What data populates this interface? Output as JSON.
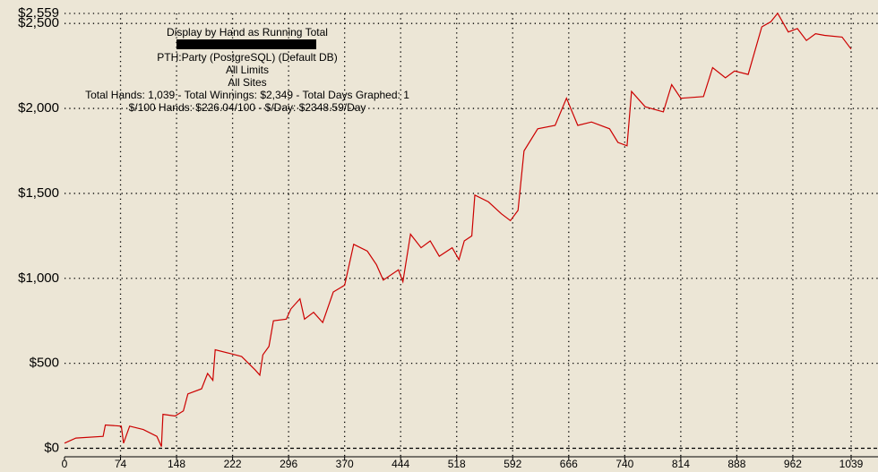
{
  "chart_data": {
    "type": "line",
    "title": "Display by Hand as Running Total",
    "subtitle_lines": [
      "PTH:Party (PostgreSQL) (Default DB)",
      "All Limits",
      "All Sites",
      "Total Hands: 1,039 - Total Winnings: $2,349 - Total Days Graphed: 1",
      "$/100 Hands: $226.04/100 - $/Day: $2348.59/Day"
    ],
    "color": "#cc0000",
    "x": [
      0,
      15,
      51,
      54,
      75,
      78,
      86,
      104,
      122,
      128,
      130,
      146,
      157,
      163,
      181,
      189,
      196,
      199,
      217,
      234,
      252,
      258,
      262,
      270,
      276,
      293,
      299,
      311,
      317,
      329,
      341,
      355,
      370,
      382,
      400,
      412,
      421,
      441,
      447,
      457,
      471,
      483,
      495,
      512,
      521,
      528,
      538,
      542,
      560,
      577,
      589,
      599,
      607,
      625,
      648,
      663,
      678,
      696,
      720,
      731,
      743,
      749,
      767,
      791,
      802,
      814,
      844,
      856,
      873,
      885,
      903,
      921,
      933,
      942,
      956,
      968,
      980,
      992,
      1004,
      1027,
      1039
    ],
    "values": [
      30,
      60,
      70,
      137,
      130,
      30,
      130,
      110,
      70,
      10,
      200,
      190,
      220,
      320,
      350,
      440,
      400,
      580,
      560,
      540,
      460,
      430,
      550,
      600,
      750,
      760,
      820,
      880,
      760,
      800,
      740,
      920,
      960,
      1200,
      1160,
      1080,
      990,
      1050,
      980,
      1260,
      1180,
      1220,
      1130,
      1180,
      1110,
      1220,
      1250,
      1490,
      1450,
      1380,
      1340,
      1400,
      1750,
      1880,
      1900,
      2060,
      1900,
      1920,
      1880,
      1800,
      1780,
      2100,
      2010,
      1980,
      2140,
      2060,
      2070,
      2240,
      2180,
      2220,
      2200,
      2480,
      2510,
      2560,
      2450,
      2470,
      2400,
      2440,
      2430,
      2420,
      2349
    ],
    "xlim": [
      0,
      1039
    ],
    "xticks": [
      0,
      74,
      148,
      222,
      296,
      370,
      444,
      518,
      592,
      666,
      740,
      814,
      888,
      962,
      1039
    ],
    "ylim": [
      -50,
      2559
    ],
    "yticks": [
      {
        "value": 0,
        "label": "$0"
      },
      {
        "value": 500,
        "label": "$500"
      },
      {
        "value": 1000,
        "label": "$1,000"
      },
      {
        "value": 1500,
        "label": "$1,500"
      },
      {
        "value": 2000,
        "label": "$2,000"
      },
      {
        "value": 2500,
        "label": "$2,500"
      },
      {
        "value": 2559,
        "label": "$2,559"
      }
    ],
    "grid": true
  }
}
